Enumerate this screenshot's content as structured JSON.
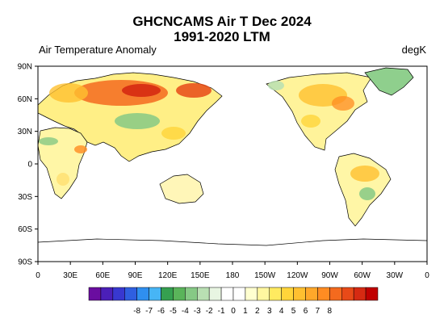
{
  "title": "GHCNCAMS Air T Dec 2024",
  "subtitle": "1991-2020 LTM",
  "variable_label": "Air Temperature Anomaly",
  "units": "degK",
  "map": {
    "lat_ticks": [
      "90N",
      "60N",
      "30N",
      "0",
      "30S",
      "60S",
      "90S"
    ],
    "lon_ticks": [
      "0",
      "30E",
      "60E",
      "90E",
      "120E",
      "150E",
      "180",
      "150W",
      "120W",
      "90W",
      "60W",
      "30W",
      "0"
    ]
  },
  "colorbar": {
    "labels": [
      "-8",
      "-7",
      "-6",
      "-5",
      "-4",
      "-3",
      "-2",
      "-1",
      "0",
      "1",
      "2",
      "3",
      "4",
      "5",
      "6",
      "7",
      "8"
    ],
    "colors": [
      "#6a0da0",
      "#4b1fb8",
      "#3838d0",
      "#2f5fe0",
      "#2f8ff0",
      "#47b5f5",
      "#35a050",
      "#5ab45a",
      "#86c985",
      "#b9dfb3",
      "#e8f5e2",
      "#ffffff",
      "#ffffff",
      "#ffffd0",
      "#fff7a0",
      "#ffea60",
      "#ffd53a",
      "#ffc030",
      "#ffa82a",
      "#ff8c22",
      "#f46a1e",
      "#e84a18",
      "#d62a12",
      "#c00000"
    ]
  },
  "chart_data": {
    "type": "heatmap",
    "title": "GHCNCAMS Air T Dec 2024",
    "subtitle": "1991-2020 LTM",
    "variable": "Air Temperature Anomaly",
    "units": "degK",
    "color_range": [
      -8,
      8
    ],
    "x_ticks": [
      "0",
      "30E",
      "60E",
      "90E",
      "120E",
      "150E",
      "180",
      "150W",
      "120W",
      "90W",
      "60W",
      "30W",
      "0"
    ],
    "y_ticks": [
      "90N",
      "60N",
      "30N",
      "0",
      "30S",
      "60S",
      "90S"
    ],
    "regions": [
      {
        "lon": [
          60,
          120
        ],
        "lat": [
          50,
          70
        ],
        "anomaly": 6
      },
      {
        "lon": [
          130,
          160
        ],
        "lat": [
          55,
          70
        ],
        "anomaly": 5
      },
      {
        "lon": [
          30,
          60
        ],
        "lat": [
          55,
          70
        ],
        "anomaly": 3
      },
      {
        "lon": [
          75,
          110
        ],
        "lat": [
          30,
          45
        ],
        "anomaly": -1.5
      },
      {
        "lon": [
          -160,
          -140
        ],
        "lat": [
          60,
          70
        ],
        "anomaly": -1
      },
      {
        "lon": [
          -110,
          -70
        ],
        "lat": [
          45,
          60
        ],
        "anomaly": 4
      },
      {
        "lon": [
          -60,
          -40
        ],
        "lat": [
          62,
          76
        ],
        "anomaly": -2
      },
      {
        "lon": [
          -55,
          -45
        ],
        "lat": [
          -30,
          -20
        ],
        "anomaly": -1.5
      },
      {
        "lon": [
          115,
          150
        ],
        "lat": [
          -35,
          -15
        ],
        "anomaly": 1.5
      },
      {
        "lon": [
          -75,
          -50
        ],
        "lat": [
          -20,
          0
        ],
        "anomaly": 2
      }
    ]
  }
}
